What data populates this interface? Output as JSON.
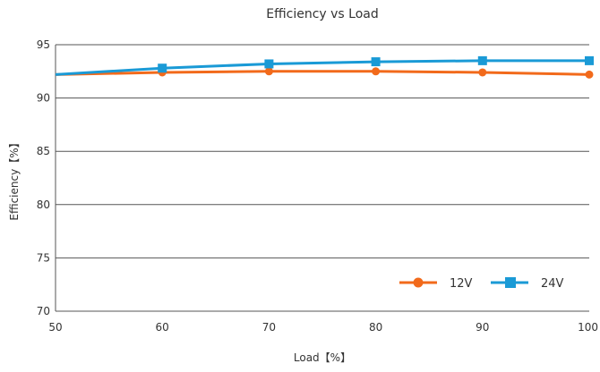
{
  "chart_data": {
    "type": "line",
    "title": "Efficiency vs Load",
    "xlabel": "Load【%】",
    "ylabel": "Efficiency【%】",
    "xlim": [
      50,
      100
    ],
    "ylim": [
      70,
      95
    ],
    "xticks": [
      "50",
      "60",
      "70",
      "80",
      "90",
      "100"
    ],
    "yticks": [
      "70",
      "75",
      "80",
      "85",
      "90",
      "95"
    ],
    "grid": "horizontal",
    "legend_position": "bottom-right",
    "x": [
      50,
      60,
      70,
      80,
      90,
      100
    ],
    "series": [
      {
        "name": "12V",
        "color": "#f26a1b",
        "marker": "circle",
        "values": [
          92.2,
          92.4,
          92.5,
          92.5,
          92.4,
          92.2
        ]
      },
      {
        "name": "24V",
        "color": "#1a9ad6",
        "marker": "square",
        "values": [
          92.2,
          92.8,
          93.2,
          93.4,
          93.5,
          93.5
        ]
      }
    ]
  }
}
